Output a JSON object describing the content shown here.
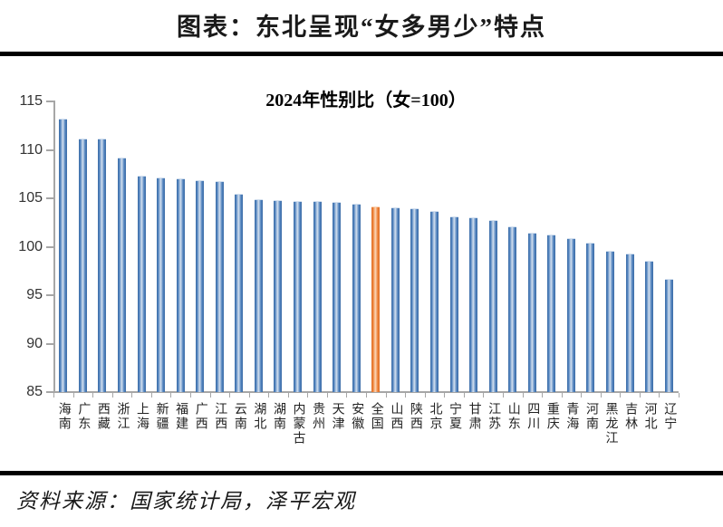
{
  "page": {
    "main_title": "图表：东北呈现“女多男少”特点",
    "source_text": "资料来源：国家统计局，泽平宏观"
  },
  "chart_data": {
    "type": "bar",
    "title": "2024年性别比（女=100）",
    "categories": [
      "海南",
      "广东",
      "西藏",
      "浙江",
      "上海",
      "新疆",
      "福建",
      "广西",
      "江西",
      "云南",
      "湖北",
      "湖南",
      "内蒙古",
      "贵州",
      "天津",
      "安徽",
      "全国",
      "山西",
      "陕西",
      "北京",
      "宁夏",
      "甘肃",
      "江苏",
      "山东",
      "四川",
      "重庆",
      "青海",
      "河南",
      "黑龙江",
      "吉林",
      "河北",
      "辽宁"
    ],
    "values": [
      113.1,
      111.1,
      111.1,
      109.1,
      107.2,
      107.1,
      107.0,
      106.8,
      106.7,
      105.4,
      104.8,
      104.7,
      104.6,
      104.6,
      104.5,
      104.3,
      104.1,
      104.0,
      103.9,
      103.6,
      103.0,
      102.9,
      102.7,
      102.0,
      101.4,
      101.2,
      100.8,
      100.3,
      99.5,
      99.2,
      98.5,
      96.6
    ],
    "highlight_category": "全国",
    "highlight_index": 16,
    "xlabel": "",
    "ylabel": "",
    "ylim": [
      85,
      115
    ],
    "yticks": [
      85,
      90,
      95,
      100,
      105,
      110,
      115
    ],
    "grid": false,
    "legend_position": "none",
    "bar_color": "#4f81bd",
    "bar_color_dark": "#3d6da6",
    "bar_color_light": "#d3e0ef",
    "highlight_color": "#ed7d31",
    "highlight_color_dark": "#dd7230",
    "highlight_color_light": "#fbd6b8",
    "axis_color": "#a6a6a6"
  }
}
